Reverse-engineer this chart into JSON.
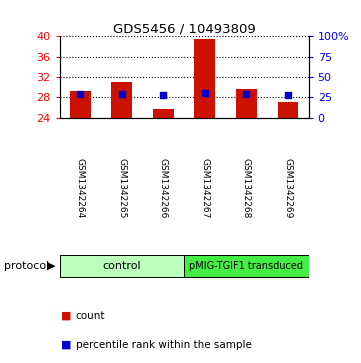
{
  "title": "GDS5456 / 10493809",
  "samples": [
    "GSM1342264",
    "GSM1342265",
    "GSM1342266",
    "GSM1342267",
    "GSM1342268",
    "GSM1342269"
  ],
  "counts": [
    29.3,
    31.0,
    25.7,
    39.5,
    29.7,
    27.2
  ],
  "percentile_ranks": [
    29.5,
    29.5,
    28.0,
    30.0,
    29.0,
    28.0
  ],
  "y_min": 24,
  "y_max": 40,
  "y_ticks_left": [
    24,
    28,
    32,
    36,
    40
  ],
  "y_ticks_right": [
    0,
    25,
    50,
    75,
    100
  ],
  "bar_color": "#cc1100",
  "marker_color": "#0000cc",
  "bar_bottom": 24,
  "bg_color": "#ffffff",
  "label_bg": "#cccccc",
  "ctrl_color": "#bbffbb",
  "pmig_color": "#44ee44",
  "ctrl_label": "control",
  "pmig_label": "pMIG-TGIF1 transduced",
  "protocol_text": "protocol",
  "legend_count": "count",
  "legend_pct": "percentile rank within the sample"
}
